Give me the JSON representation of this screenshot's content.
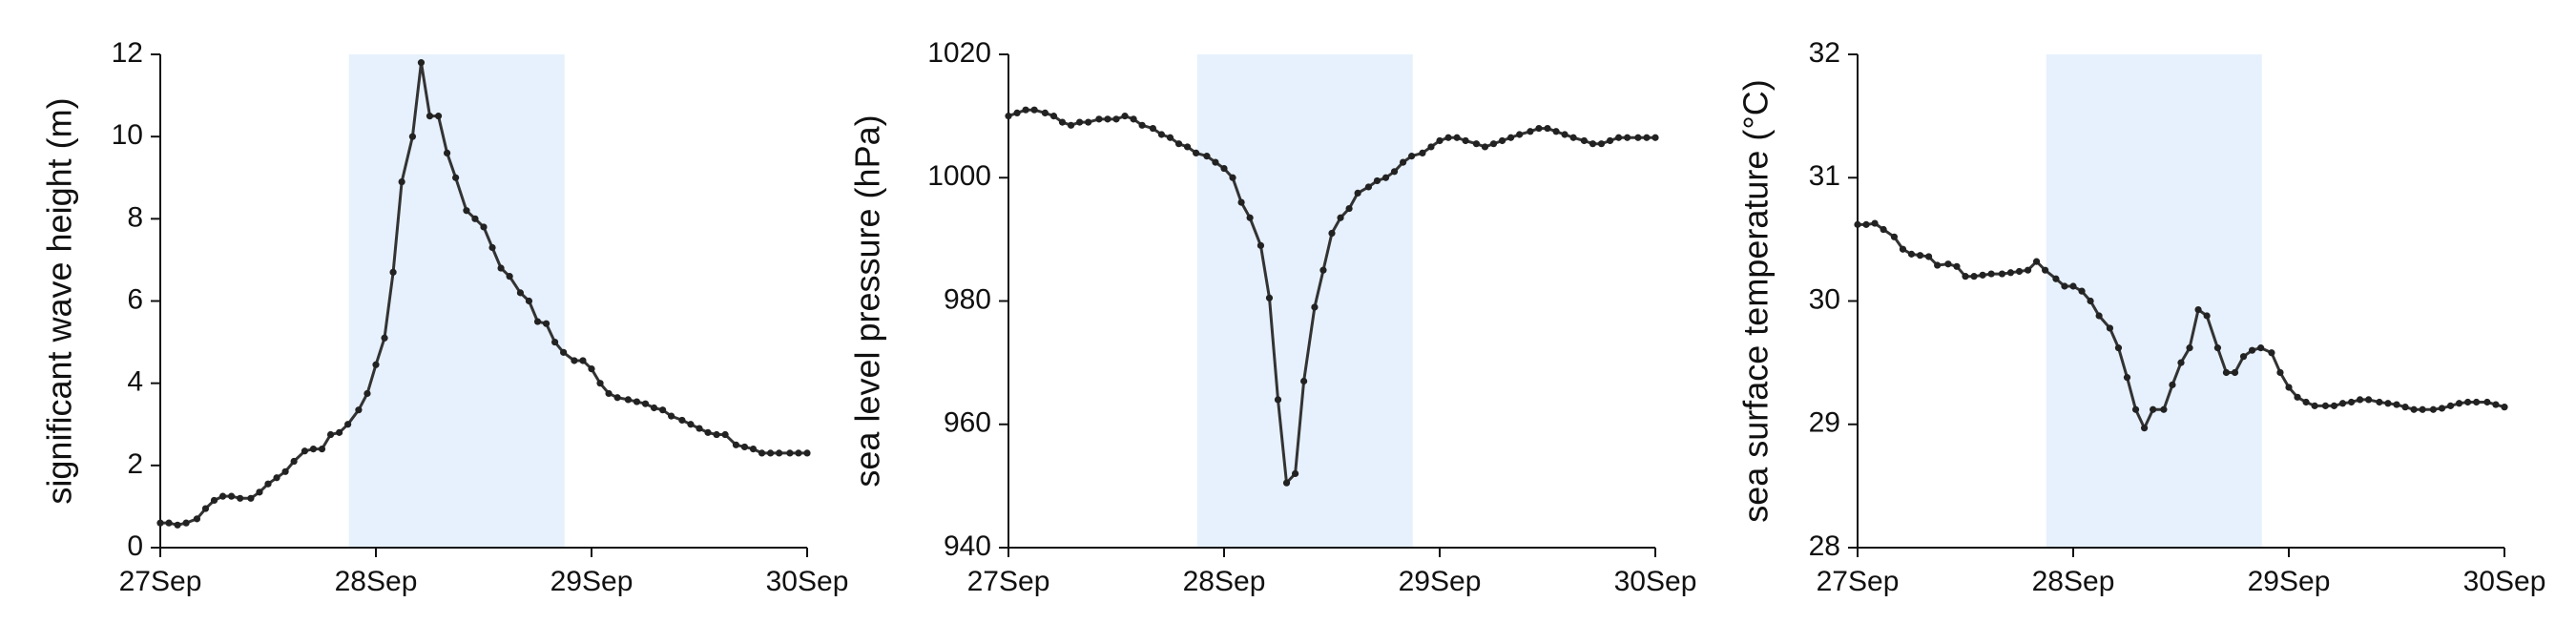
{
  "colors": {
    "shade": "#e6f1fd",
    "line": "#333333",
    "marker": "#222222",
    "axis": "#111111"
  },
  "chart_data": [
    {
      "type": "line",
      "ylabel": "significant wave height (m)",
      "xlabel": "",
      "ylim": [
        0,
        12
      ],
      "yticks": [
        0,
        2,
        4,
        6,
        8,
        10,
        12
      ],
      "xlim": [
        0,
        3
      ],
      "xticks": [
        0,
        1,
        2,
        3
      ],
      "xtick_labels": [
        "27Sep",
        "28Sep",
        "29Sep",
        "30Sep"
      ],
      "shaded_span": [
        0.875,
        1.875
      ],
      "grid": false,
      "series": [
        {
          "x": [
            0.0,
            0.04,
            0.08,
            0.12,
            0.17,
            0.21,
            0.25,
            0.29,
            0.33,
            0.37,
            0.42,
            0.46,
            0.5,
            0.54,
            0.58,
            0.62,
            0.67,
            0.71,
            0.75,
            0.79,
            0.83,
            0.87,
            0.92,
            0.96,
            1.0,
            1.04,
            1.08,
            1.12,
            1.17,
            1.21,
            1.25,
            1.29,
            1.33,
            1.37,
            1.42,
            1.46,
            1.5,
            1.54,
            1.58,
            1.62,
            1.67,
            1.71,
            1.75,
            1.79,
            1.83,
            1.87,
            1.92,
            1.96,
            2.0,
            2.04,
            2.08,
            2.12,
            2.17,
            2.21,
            2.25,
            2.29,
            2.33,
            2.37,
            2.42,
            2.46,
            2.5,
            2.54,
            2.58,
            2.62,
            2.67,
            2.71,
            2.75,
            2.79,
            2.83,
            2.87,
            2.92,
            2.96,
            3.0
          ],
          "values": [
            0.6,
            0.6,
            0.55,
            0.6,
            0.7,
            0.95,
            1.15,
            1.25,
            1.25,
            1.2,
            1.2,
            1.35,
            1.55,
            1.7,
            1.85,
            2.1,
            2.35,
            2.4,
            2.4,
            2.75,
            2.8,
            3.0,
            3.35,
            3.75,
            4.45,
            5.1,
            6.7,
            8.9,
            10.0,
            11.8,
            10.5,
            10.5,
            9.6,
            9.0,
            8.2,
            8.0,
            7.8,
            7.3,
            6.8,
            6.6,
            6.2,
            6.0,
            5.5,
            5.45,
            5.0,
            4.75,
            4.55,
            4.55,
            4.35,
            4.0,
            3.75,
            3.65,
            3.6,
            3.55,
            3.5,
            3.4,
            3.35,
            3.2,
            3.1,
            3.0,
            2.9,
            2.8,
            2.75,
            2.75,
            2.5,
            2.45,
            2.4,
            2.3,
            2.3,
            2.3,
            2.3,
            2.3,
            2.3
          ]
        }
      ]
    },
    {
      "type": "line",
      "ylabel": "sea level pressure (hPa)",
      "xlabel": "",
      "ylim": [
        940,
        1020
      ],
      "yticks": [
        940,
        960,
        980,
        1000,
        1020
      ],
      "xlim": [
        0,
        3
      ],
      "xticks": [
        0,
        1,
        2,
        3
      ],
      "xtick_labels": [
        "27Sep",
        "28Sep",
        "29Sep",
        "30Sep"
      ],
      "shaded_span": [
        0.875,
        1.875
      ],
      "grid": false,
      "series": [
        {
          "x": [
            0.0,
            0.04,
            0.08,
            0.12,
            0.17,
            0.21,
            0.25,
            0.29,
            0.33,
            0.37,
            0.42,
            0.46,
            0.5,
            0.54,
            0.58,
            0.62,
            0.67,
            0.71,
            0.75,
            0.79,
            0.83,
            0.87,
            0.92,
            0.96,
            1.0,
            1.04,
            1.08,
            1.12,
            1.17,
            1.21,
            1.25,
            1.29,
            1.33,
            1.37,
            1.42,
            1.46,
            1.5,
            1.54,
            1.58,
            1.62,
            1.67,
            1.71,
            1.75,
            1.79,
            1.83,
            1.87,
            1.92,
            1.96,
            2.0,
            2.04,
            2.08,
            2.12,
            2.17,
            2.21,
            2.25,
            2.29,
            2.33,
            2.37,
            2.42,
            2.46,
            2.5,
            2.54,
            2.58,
            2.62,
            2.67,
            2.71,
            2.75,
            2.79,
            2.83,
            2.87,
            2.92,
            2.96,
            3.0
          ],
          "values": [
            1010.0,
            1010.5,
            1011.0,
            1011.0,
            1010.5,
            1010.0,
            1009.0,
            1008.5,
            1009.0,
            1009.0,
            1009.5,
            1009.5,
            1009.5,
            1010.0,
            1009.5,
            1008.5,
            1008.0,
            1007.0,
            1006.5,
            1005.5,
            1005.0,
            1004.0,
            1003.5,
            1002.5,
            1001.5,
            1000.0,
            996.0,
            993.5,
            989.0,
            980.5,
            964.0,
            950.5,
            952.0,
            967.0,
            979.0,
            985.0,
            991.0,
            993.5,
            995.0,
            997.5,
            998.5,
            999.5,
            1000.0,
            1001.0,
            1002.5,
            1003.5,
            1004.0,
            1005.0,
            1006.0,
            1006.5,
            1006.5,
            1006.0,
            1005.5,
            1005.0,
            1005.5,
            1006.0,
            1006.5,
            1007.0,
            1007.5,
            1008.0,
            1008.0,
            1007.5,
            1007.0,
            1006.5,
            1006.0,
            1005.5,
            1005.5,
            1006.0,
            1006.5,
            1006.5,
            1006.5,
            1006.5,
            1006.5
          ]
        }
      ]
    },
    {
      "type": "line",
      "ylabel": "sea surface temperature (°C)",
      "xlabel": "",
      "ylim": [
        28,
        32
      ],
      "yticks": [
        28,
        29,
        30,
        31,
        32
      ],
      "xlim": [
        0,
        3
      ],
      "xticks": [
        0,
        1,
        2,
        3
      ],
      "xtick_labels": [
        "27Sep",
        "28Sep",
        "29Sep",
        "30Sep"
      ],
      "shaded_span": [
        0.875,
        1.875
      ],
      "grid": false,
      "series": [
        {
          "x": [
            0.0,
            0.04,
            0.08,
            0.12,
            0.17,
            0.21,
            0.25,
            0.29,
            0.33,
            0.37,
            0.42,
            0.46,
            0.5,
            0.54,
            0.58,
            0.62,
            0.67,
            0.71,
            0.75,
            0.79,
            0.83,
            0.87,
            0.92,
            0.96,
            1.0,
            1.04,
            1.08,
            1.12,
            1.17,
            1.21,
            1.25,
            1.29,
            1.33,
            1.37,
            1.42,
            1.46,
            1.5,
            1.54,
            1.58,
            1.62,
            1.67,
            1.71,
            1.75,
            1.79,
            1.83,
            1.87,
            1.92,
            1.96,
            2.0,
            2.04,
            2.08,
            2.12,
            2.17,
            2.21,
            2.25,
            2.29,
            2.33,
            2.37,
            2.42,
            2.46,
            2.5,
            2.54,
            2.58,
            2.62,
            2.67,
            2.71,
            2.75,
            2.79,
            2.83,
            2.87,
            2.92,
            2.96,
            3.0
          ],
          "values": [
            30.62,
            30.62,
            30.63,
            30.58,
            30.52,
            30.42,
            30.38,
            30.37,
            30.36,
            30.29,
            30.3,
            30.28,
            30.2,
            30.2,
            30.21,
            30.22,
            30.22,
            30.23,
            30.24,
            30.25,
            30.32,
            30.25,
            30.18,
            30.12,
            30.12,
            30.08,
            30.0,
            29.88,
            29.78,
            29.62,
            29.38,
            29.12,
            28.97,
            29.12,
            29.12,
            29.32,
            29.5,
            29.62,
            29.93,
            29.88,
            29.62,
            29.42,
            29.42,
            29.55,
            29.6,
            29.62,
            29.58,
            29.42,
            29.3,
            29.22,
            29.18,
            29.15,
            29.15,
            29.15,
            29.17,
            29.18,
            29.2,
            29.2,
            29.18,
            29.17,
            29.16,
            29.14,
            29.12,
            29.12,
            29.12,
            29.13,
            29.15,
            29.17,
            29.18,
            29.18,
            29.18,
            29.16,
            29.14
          ]
        }
      ]
    }
  ]
}
